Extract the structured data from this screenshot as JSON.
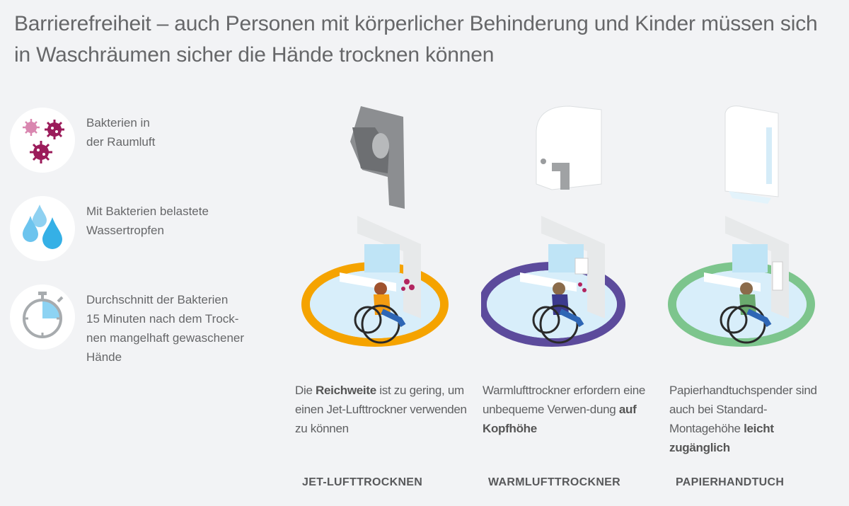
{
  "title": "Barrierefreiheit – auch Personen mit körperlicher Behinderung und Kinder müssen sich in Waschräumen sicher die Hände trocknen können",
  "legend": [
    {
      "icon": "bacteria-icon",
      "text": "Bakterien in der Raumluft",
      "line1": "Bakterien in",
      "line2": "der Raumluft"
    },
    {
      "icon": "water-drops-icon",
      "text": "Mit Bakterien belastete Wassertropfen",
      "line1": "Mit Bakterien belastete",
      "line2": "Wassertropfen"
    },
    {
      "icon": "stopwatch-icon",
      "line1": "Durchschnitt der Bakterien",
      "line2": "15 Minuten nach dem Trock-",
      "line3": "nen mangelhaft gewaschener",
      "line4": "Hände"
    }
  ],
  "columns": [
    {
      "label": "JET-LUFTTROCKNEN",
      "ring_color": "#f5a300",
      "desc_pre": "Die ",
      "desc_bold": "Reichweite",
      "desc_post": " ist zu gering, um einen Jet-Lufttrockner verwenden zu können"
    },
    {
      "label": "WARMLUFTTROCKNER",
      "ring_color": "#5c4b9c",
      "desc_pre": "Warmlufttrockner erfordern eine unbequeme Verwen-dung ",
      "desc_bold": "auf Kopfhöhe",
      "desc_post": ""
    },
    {
      "label": "PAPIERHANDTUCH",
      "ring_color": "#7dc58d",
      "desc_pre": "Papierhandtuchspender sind auch bei Standard-Montagehöhe ",
      "desc_bold": "leicht zugänglich",
      "desc_post": ""
    }
  ],
  "colors": {
    "background": "#f2f3f5",
    "bacteria": "#9b1b5a",
    "bacteria_light": "#d987b0",
    "drop": "#35b0e6",
    "stopwatch": "#a7abae"
  }
}
